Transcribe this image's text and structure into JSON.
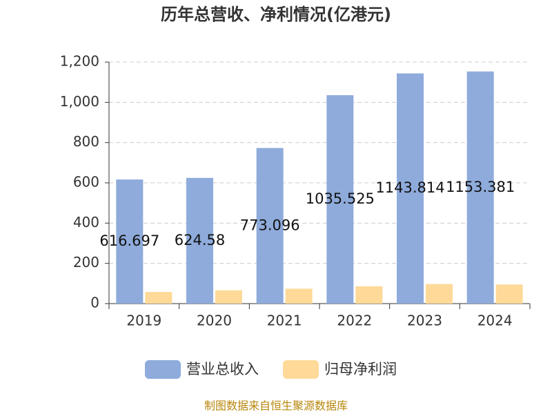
{
  "chart_data": {
    "type": "bar",
    "title": "历年总营收、净利情况(亿港元)",
    "categories": [
      "2019",
      "2020",
      "2021",
      "2022",
      "2023",
      "2024"
    ],
    "series": [
      {
        "name": "营业总收入",
        "color": "#8eabdb",
        "values": [
          616.697,
          624.58,
          773.096,
          1035.525,
          1143.814,
          1153.381
        ]
      },
      {
        "name": "归母净利润",
        "color": "#fed998",
        "values": [
          58,
          66,
          74,
          86,
          97,
          95
        ]
      }
    ],
    "ylim": [
      0,
      1200
    ],
    "yticks": [
      0,
      200,
      400,
      600,
      800,
      {
        "value": 1000,
        "label": "1,000"
      },
      {
        "value": 1200,
        "label": "1,200"
      }
    ],
    "grid": true,
    "source": "制图数据来自恒生聚源数据库"
  }
}
